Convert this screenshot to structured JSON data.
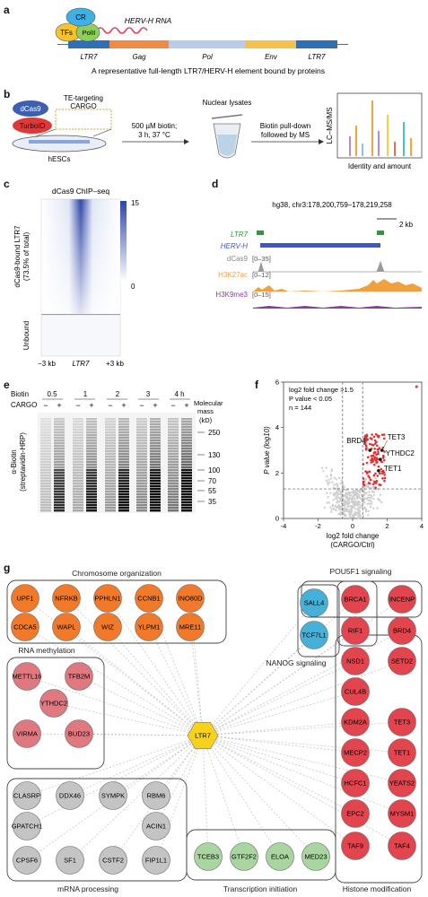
{
  "panel_a": {
    "letter": "a",
    "proteins": [
      "CR",
      "TFs",
      "PolII"
    ],
    "rna_label": "HERV-H RNA",
    "segments": [
      "LTR7",
      "Gag",
      "Pol",
      "Env",
      "LTR7"
    ],
    "caption": "A representative full-length LTR7/HERV-H element bound by proteins"
  },
  "panel_b": {
    "letter": "b",
    "dcas9": "dCas9",
    "turboid": "TurboID",
    "cargo_line1": "TE-targeting",
    "cargo_line2": "CARGO",
    "hescs": "hESCs",
    "step1_line1": "500 µM biotin;",
    "step1_line2": "3 h, 37 °C",
    "nuclear": "Nuclear lysates",
    "step2_line1": "Biotin pull-down",
    "step2_line2": "followed by MS",
    "ylabel": "LC–MS/MS",
    "identity": "Identity and amount"
  },
  "panel_c": {
    "letter": "c",
    "title": "dCas9 ChIP–seq",
    "ylabel_top1": "dCas9-bound LTR7",
    "ylabel_top2": "(73.5% of total)",
    "ylabel_bottom": "Unbound",
    "x_left": "−3 kb",
    "x_mid": "LTR7",
    "x_right": "+3 kb",
    "scale_max": "15",
    "scale_min": "0"
  },
  "panel_d": {
    "letter": "d",
    "coord": "hg38, chr3:178,200,759–178,219,258",
    "scale": "2 kb",
    "track_ltr7": "LTR7",
    "track_hervh": "HERV-H",
    "tracks": [
      {
        "name": "dCas9",
        "range": "[0–35]",
        "color": "#9a9a9a"
      },
      {
        "name": "H3K27ac",
        "range": "[0–12]",
        "color": "#f0a040"
      },
      {
        "name": "H3K9me3",
        "range": "[0–15]",
        "color": "#8a3aa6"
      }
    ]
  },
  "panel_e": {
    "letter": "e",
    "biotin_label": "Biotin",
    "cargo_label": "CARGO",
    "times": [
      "0.5",
      "1",
      "2",
      "3",
      "4 h"
    ],
    "lane_signs": [
      "−",
      "+",
      "−",
      "+",
      "−",
      "+",
      "−",
      "+",
      "−",
      "+"
    ],
    "ylabel1": "α-Biotin",
    "ylabel2": "(streptavidin-HRP)",
    "mass_title1": "Molecular",
    "mass_title2": "mass",
    "mass_unit": "(kD)",
    "markers": [
      "250",
      "130",
      "100",
      "70",
      "55",
      "35"
    ]
  },
  "panel_f": {
    "letter": "f",
    "legend1": "log2 fold change >1.5",
    "legend2": "P value < 0.05",
    "legend3": "n = 144",
    "xlabel1": "log2 fold change",
    "xlabel2": "(CARGO/Ctrl)",
    "ylabel": "P value (log10)",
    "labels": [
      "BRD4",
      "TET3",
      "YTHDC2",
      "TET1"
    ]
  },
  "chart_data": {
    "type": "scatter",
    "title": "",
    "xlabel": "log2 fold change (CARGO/Ctrl)",
    "ylabel": "P value (log10)",
    "xlim": [
      -4,
      4
    ],
    "ylim": [
      0,
      6
    ],
    "x_ticks": [
      -4,
      -2,
      0,
      2,
      4
    ],
    "y_ticks": [
      0,
      2,
      4,
      6
    ],
    "thresholds": {
      "x": [
        -0.58,
        0.58
      ],
      "y": 1.3
    },
    "highlighted": [
      {
        "label": "BRD4",
        "x": 1.0,
        "y": 3.0
      },
      {
        "label": "TET3",
        "x": 1.7,
        "y": 3.0
      },
      {
        "label": "YTHDC2",
        "x": 1.6,
        "y": 2.6
      },
      {
        "label": "TET1",
        "x": 1.5,
        "y": 2.1
      }
    ]
  },
  "panel_g": {
    "letter": "g",
    "center": "LTR7",
    "categories": {
      "chromosome": "Chromosome organization",
      "rna_methylation": "RNA methylation",
      "mrna_processing": "mRNA processing",
      "transcription": "Transcription initiation",
      "histone": "Histone modification",
      "pou5f1": "POU5F1 signaling",
      "nanog": "NANOG signaling"
    },
    "colors": {
      "chromosome": "#f07a2a",
      "rna": "#e0787f",
      "mrna": "#c4c4c4",
      "transcription": "#a9d5a0",
      "histone": "#e2454d",
      "nanog": "#46b0d8",
      "center": "#f7d21c"
    },
    "nodes": {
      "chromosome": [
        "UPF1",
        "NFRKB",
        "PPHLN1",
        "CCNB1",
        "INO80D",
        "CDCA5",
        "WAPL",
        "WIZ",
        "YLPM1",
        "MRE11"
      ],
      "rna": [
        "METTL16",
        "TFB2M",
        "YTHDC2",
        "VIRMA",
        "BUD23"
      ],
      "mrna": [
        "CLASRP",
        "DDX46",
        "SYMPK",
        "RBM6",
        "GPATCH1",
        "ACIN1",
        "CPSF6",
        "SF1",
        "CSTF2",
        "FIP1L1"
      ],
      "transcription": [
        "TCEB3",
        "GTF2F2",
        "ELOA",
        "MED23"
      ],
      "nanog": [
        "SALL4",
        "TCF7L1"
      ],
      "histone": [
        "BRCA1",
        "INCENP",
        "RIF1",
        "BRD4",
        "NSD1",
        "SETD2",
        "CUL4B",
        "KDM2A",
        "TET3",
        "MECP2",
        "TET1",
        "HCFC1",
        "YEATS2",
        "EPC2",
        "MYSM1",
        "TAF9",
        "TAF4"
      ]
    }
  }
}
